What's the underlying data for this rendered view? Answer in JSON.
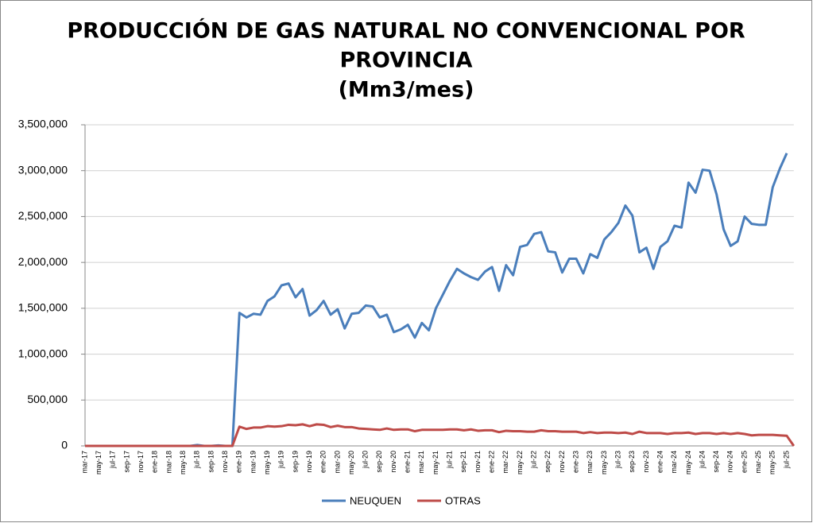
{
  "chart_data": {
    "type": "line",
    "title": [
      "PRODUCCIÓN DE GAS NATURAL NO CONVENCIONAL POR",
      "PROVINCIA",
      "(Mm3/mes)"
    ],
    "categories": [
      "mar-17",
      null,
      "may-17",
      null,
      "jul-17",
      null,
      "sep-17",
      null,
      "nov-17",
      null,
      "ene-18",
      null,
      "mar-18",
      null,
      "may-18",
      null,
      "jul-18",
      null,
      "sep-18",
      null,
      "nov-18",
      null,
      "ene-19",
      null,
      "mar-19",
      null,
      "may-19",
      null,
      "jul-19",
      null,
      "sep-19",
      null,
      "nov-19",
      null,
      "ene-20",
      null,
      "mar-20",
      null,
      "may-20",
      null,
      "jul-20",
      null,
      "sep-20",
      null,
      "nov-20",
      null,
      "ene-21",
      null,
      "mar-21",
      null,
      "may-21",
      null,
      "jul-21",
      null,
      "sep-21",
      null,
      "nov-21",
      null,
      "ene-22",
      null,
      "mar-22",
      null,
      "may-22",
      null,
      "jul-22",
      null,
      "sep-22",
      null,
      "nov-22",
      null,
      "ene-23",
      null,
      "mar-23",
      null,
      "may-23",
      null,
      "jul-23",
      null,
      "sep-23",
      null,
      "nov-23",
      null,
      "ene-24",
      null,
      "mar-24",
      null,
      "may-24",
      null,
      "jul-24",
      null,
      "sep-24",
      null,
      "nov-24",
      null,
      "ene-25",
      null,
      "mar-25",
      null,
      "may-25",
      null,
      "jul-25",
      null
    ],
    "series": [
      {
        "name": "NEUQUEN",
        "color": "#4a7ebb",
        "values": [
          0,
          0,
          0,
          0,
          0,
          0,
          0,
          0,
          0,
          0,
          0,
          0,
          0,
          0,
          0,
          0,
          10000,
          0,
          0,
          5000,
          0,
          0,
          1450000,
          1400000,
          1440000,
          1430000,
          1580000,
          1630000,
          1750000,
          1770000,
          1620000,
          1710000,
          1420000,
          1480000,
          1580000,
          1430000,
          1490000,
          1280000,
          1440000,
          1450000,
          1530000,
          1520000,
          1400000,
          1430000,
          1240000,
          1270000,
          1320000,
          1180000,
          1340000,
          1260000,
          1500000,
          1650000,
          1800000,
          1930000,
          1880000,
          1840000,
          1810000,
          1900000,
          1950000,
          1690000,
          1970000,
          1860000,
          2170000,
          2190000,
          2310000,
          2330000,
          2120000,
          2110000,
          1890000,
          2040000,
          2040000,
          1880000,
          2090000,
          2050000,
          2250000,
          2330000,
          2430000,
          2620000,
          2510000,
          2110000,
          2160000,
          1930000,
          2170000,
          2230000,
          2400000,
          2380000,
          2870000,
          2760000,
          3010000,
          3000000,
          2740000,
          2360000,
          2180000,
          2230000,
          2500000,
          2420000,
          2410000,
          2410000,
          2820000,
          3020000,
          3190000,
          null
        ]
      },
      {
        "name": "OTRAS",
        "color": "#be4b48",
        "values": [
          0,
          0,
          0,
          0,
          0,
          0,
          0,
          0,
          0,
          0,
          0,
          0,
          0,
          0,
          0,
          0,
          0,
          0,
          0,
          0,
          0,
          0,
          210000,
          185000,
          200000,
          200000,
          215000,
          210000,
          215000,
          230000,
          225000,
          235000,
          215000,
          235000,
          230000,
          205000,
          220000,
          205000,
          205000,
          190000,
          185000,
          180000,
          175000,
          190000,
          175000,
          180000,
          180000,
          160000,
          175000,
          175000,
          175000,
          175000,
          180000,
          180000,
          170000,
          180000,
          165000,
          170000,
          170000,
          150000,
          165000,
          160000,
          160000,
          155000,
          155000,
          170000,
          160000,
          160000,
          155000,
          155000,
          155000,
          140000,
          150000,
          140000,
          145000,
          145000,
          140000,
          145000,
          130000,
          155000,
          140000,
          140000,
          140000,
          130000,
          140000,
          140000,
          145000,
          130000,
          140000,
          140000,
          130000,
          140000,
          130000,
          140000,
          130000,
          115000,
          120000,
          120000,
          120000,
          115000,
          110000,
          0
        ]
      }
    ],
    "ylim": [
      0,
      3500000
    ],
    "yticks": [
      0,
      {
        "value": 500000,
        "label": "500,000"
      },
      {
        "value": 1000000,
        "label": "1,000,000"
      },
      {
        "value": 1500000,
        "label": "1,500,000"
      },
      {
        "value": 2000000,
        "label": "2,000,000"
      },
      {
        "value": 2500000,
        "label": "2,500,000"
      },
      {
        "value": 3000000,
        "label": "3,000,000"
      },
      {
        "value": 3500000,
        "label": "3,500,000"
      }
    ],
    "grid": true,
    "legend": "bottom"
  }
}
